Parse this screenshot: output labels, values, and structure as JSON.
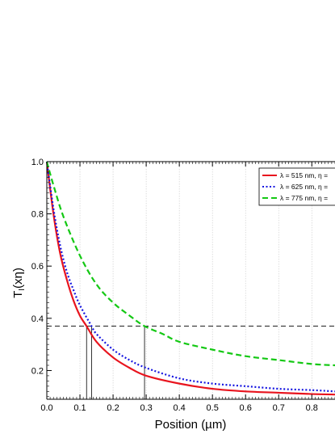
{
  "chart_data": {
    "type": "line",
    "title": "",
    "xlabel": "Position (µm)",
    "ylabel_main": "T",
    "ylabel_sub": "I",
    "ylabel_rest": "(xη)",
    "xlim": [
      0.0,
      0.87
    ],
    "ylim": [
      0.09,
      1.0
    ],
    "x_ticks": [
      0.0,
      0.1,
      0.2,
      0.3,
      0.4,
      0.5,
      0.6,
      0.7,
      0.8
    ],
    "x_tick_labels": [
      "0.0",
      "0.1",
      "0.2",
      "0.3",
      "0.4",
      "0.5",
      "0.6",
      "0.7",
      "0.8"
    ],
    "y_ticks": [
      0.2,
      0.4,
      0.6,
      0.8,
      1.0
    ],
    "y_tick_labels": [
      "0.2",
      "0.4",
      "0.6",
      "0.8",
      "1.0"
    ],
    "grid": true,
    "legend_position": "top-right",
    "threshold_y": 0.37,
    "marker_x": [
      0.12,
      0.135,
      0.295
    ],
    "series": [
      {
        "name": "λ = 515 nm, η =",
        "color": "#e8141e",
        "dash": "solid",
        "x": [
          0.0,
          0.02,
          0.04,
          0.06,
          0.08,
          0.1,
          0.12,
          0.15,
          0.2,
          0.25,
          0.3,
          0.4,
          0.5,
          0.6,
          0.7,
          0.8,
          0.87
        ],
        "y": [
          1.0,
          0.8,
          0.65,
          0.55,
          0.47,
          0.41,
          0.37,
          0.31,
          0.25,
          0.21,
          0.18,
          0.15,
          0.13,
          0.12,
          0.115,
          0.11,
          0.108
        ]
      },
      {
        "name": "λ = 625 nm, η =",
        "color": "#1414e0",
        "dash": "dotted",
        "x": [
          0.0,
          0.02,
          0.04,
          0.06,
          0.08,
          0.1,
          0.135,
          0.15,
          0.2,
          0.25,
          0.3,
          0.4,
          0.5,
          0.6,
          0.7,
          0.8,
          0.87
        ],
        "y": [
          1.0,
          0.82,
          0.68,
          0.58,
          0.51,
          0.45,
          0.37,
          0.34,
          0.28,
          0.24,
          0.21,
          0.17,
          0.15,
          0.14,
          0.13,
          0.125,
          0.12
        ]
      },
      {
        "name": "λ = 775 nm, η =",
        "color": "#14c814",
        "dash": "dashed",
        "x": [
          0.0,
          0.02,
          0.05,
          0.1,
          0.15,
          0.2,
          0.25,
          0.295,
          0.35,
          0.4,
          0.5,
          0.6,
          0.7,
          0.8,
          0.87
        ],
        "y": [
          1.0,
          0.91,
          0.79,
          0.64,
          0.53,
          0.46,
          0.41,
          0.37,
          0.34,
          0.31,
          0.28,
          0.255,
          0.24,
          0.225,
          0.22
        ]
      }
    ]
  }
}
